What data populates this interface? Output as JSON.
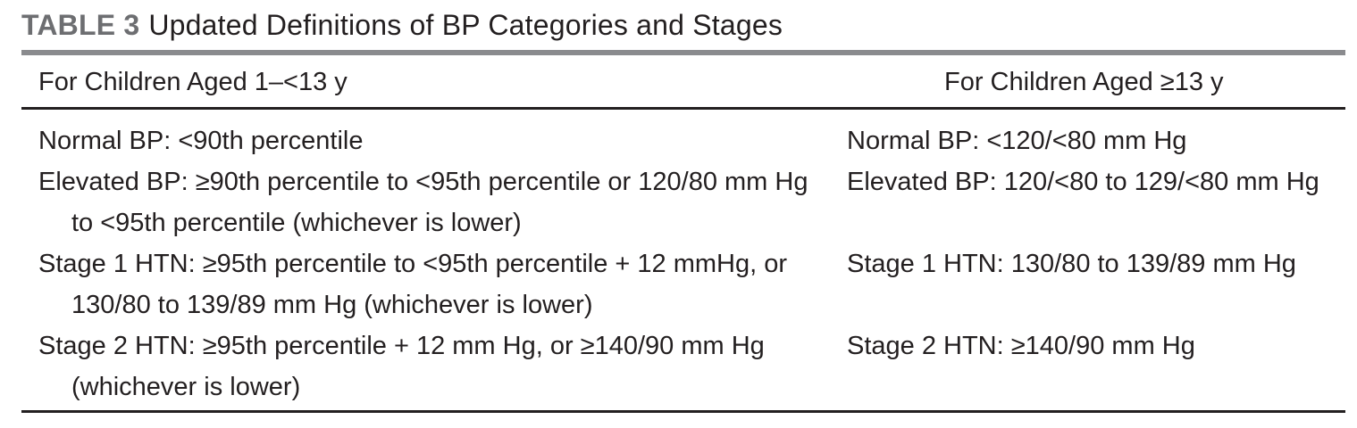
{
  "caption": {
    "label": "TABLE 3",
    "title": "Updated Definitions of BP Categories and Stages"
  },
  "headers": {
    "left": "For Children Aged 1–<13 y",
    "right": "For Children Aged ≥13 y"
  },
  "left_rows": [
    "Normal BP: <90th percentile",
    "Elevated BP: ≥90th percentile to <95th percentile or 120/80 mm Hg to <95th percentile (whichever is lower)",
    "Stage 1 HTN: ≥95th percentile to <95th percentile + 12 mmHg, or 130/80 to 139/89 mm Hg (whichever is lower)",
    "Stage 2 HTN: ≥95th percentile + 12 mm Hg, or ≥140/90 mm Hg (whichever is lower)"
  ],
  "right_rows": [
    "Normal BP: <120/<80 mm Hg",
    "Elevated BP: 120/<80 to 129/<80 mm Hg",
    "Stage 1 HTN: 130/80 to 139/89 mm Hg",
    "Stage 2 HTN: ≥140/90 mm Hg"
  ]
}
